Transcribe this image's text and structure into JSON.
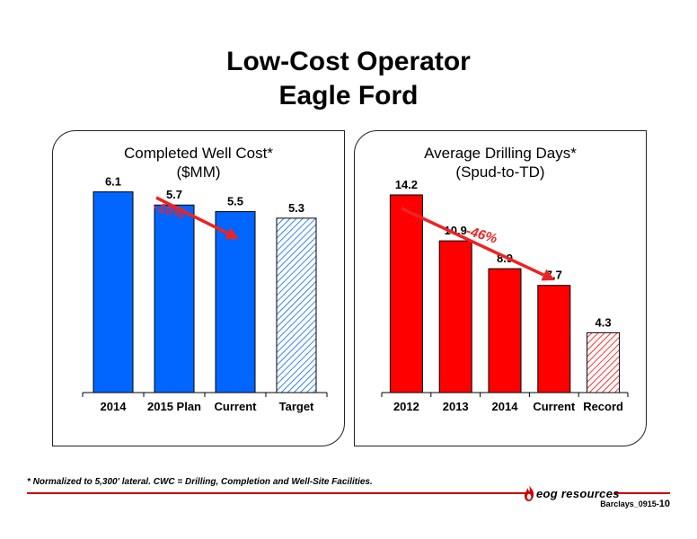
{
  "title": {
    "line1": "Low-Cost Operator",
    "line2": "Eagle Ford"
  },
  "colors": {
    "blue": "#0066ff",
    "red": "#ff0000",
    "arrow": "#ee2222"
  },
  "chart_data": [
    {
      "type": "bar",
      "title": "Completed Well Cost*",
      "subtitle": "($MM)",
      "categories": [
        "2014",
        "2015 Plan",
        "Current",
        "Target"
      ],
      "values": [
        6.1,
        5.7,
        5.5,
        5.3
      ],
      "value_labels": [
        "6.1",
        "5.7",
        "5.5",
        "5.3"
      ],
      "hatched": [
        false,
        false,
        false,
        true
      ],
      "ylim": [
        0,
        7.7
      ],
      "annotation": "-10%",
      "color": "#0066ff"
    },
    {
      "type": "bar",
      "title": "Average Drilling Days*",
      "subtitle": "(Spud-to-TD)",
      "categories": [
        "2012",
        "2013",
        "2014",
        "Current",
        "Record"
      ],
      "values": [
        14.2,
        10.9,
        8.9,
        7.7,
        4.3
      ],
      "value_labels": [
        "14.2",
        "10.9",
        "8.9",
        "7.7",
        "4.3"
      ],
      "hatched": [
        false,
        false,
        false,
        false,
        true
      ],
      "ylim": [
        0,
        18.2
      ],
      "annotation": "-46%",
      "color": "#ff0000"
    }
  ],
  "footnote": "* Normalized to 5,300' lateral. CWC = Drilling, Completion and Well-Site Facilities.",
  "logo": {
    "text": "eog resources",
    "icon": "flame-icon"
  },
  "page_ref": {
    "prefix": "Barclays_0915-",
    "number": "10"
  }
}
